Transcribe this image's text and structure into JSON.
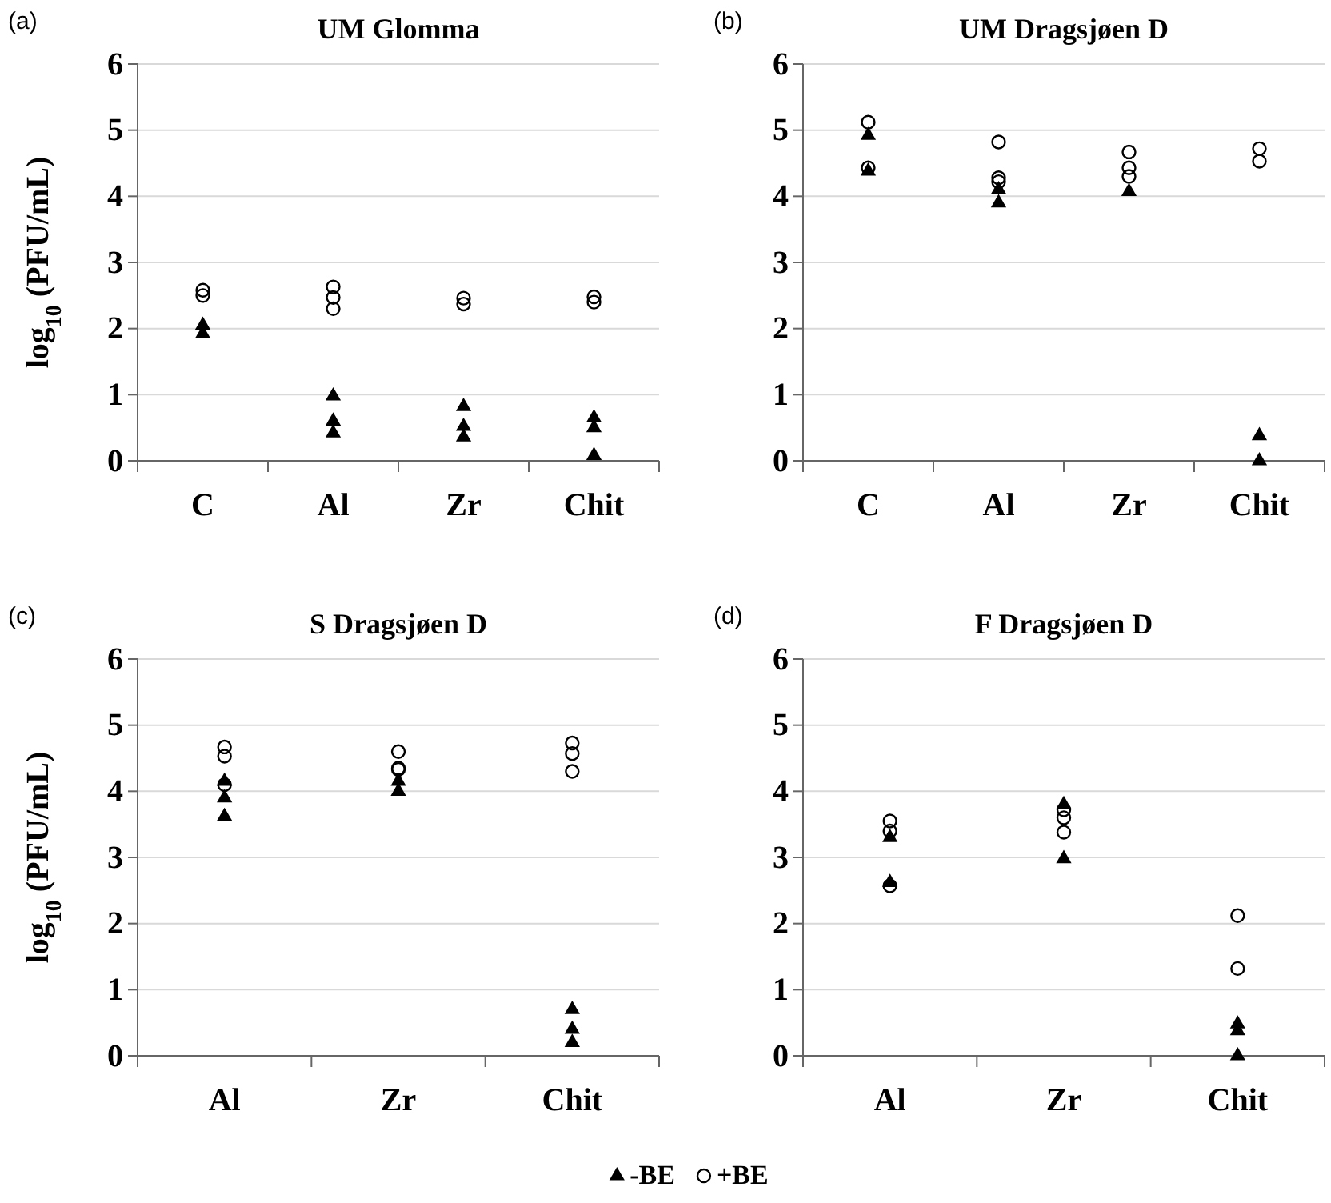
{
  "chart_data": [
    {
      "type": "scatter",
      "title": "UM Glomma",
      "ylabel": "log$_{10}$ (PFU/mL)",
      "annotations": [
        "(a)"
      ],
      "categories": [
        "C",
        "Al",
        "Zr",
        "Chit"
      ],
      "ylim": [
        0,
        6
      ],
      "yticks": [
        0,
        1,
        2,
        3,
        4,
        5,
        6
      ],
      "grid": "y",
      "legend": "bottom",
      "series": [
        {
          "name": "-BE",
          "color": "#000000",
          "marker": "triangle",
          "x": [
            "C",
            "C",
            "Al",
            "Al",
            "Al",
            "Zr",
            "Zr",
            "Zr",
            "Chit",
            "Chit",
            "Chit"
          ],
          "values": [
            2.05,
            1.92,
            0.98,
            0.6,
            0.42,
            0.82,
            0.52,
            0.36,
            0.65,
            0.5,
            0.08
          ]
        },
        {
          "name": "+BE",
          "color": "#000000",
          "marker": "circle",
          "x": [
            "C",
            "C",
            "Al",
            "Al",
            "Al",
            "Zr",
            "Zr",
            "Chit",
            "Chit"
          ],
          "values": [
            2.58,
            2.5,
            2.63,
            2.47,
            2.3,
            2.46,
            2.37,
            2.48,
            2.4
          ]
        }
      ]
    },
    {
      "type": "scatter",
      "title": "UM Dragsjøen D",
      "annotations": [
        "(b)"
      ],
      "categories": [
        "C",
        "Al",
        "Zr",
        "Chit"
      ],
      "ylim": [
        0,
        6
      ],
      "yticks": [
        0,
        1,
        2,
        3,
        4,
        5,
        6
      ],
      "grid": "y",
      "legend": "bottom",
      "series": [
        {
          "name": "-BE",
          "color": "#000000",
          "marker": "triangle",
          "x": [
            "C",
            "C",
            "Al",
            "Al",
            "Zr",
            "Chit",
            "Chit"
          ],
          "values": [
            4.92,
            4.38,
            4.1,
            3.9,
            4.07,
            0.38,
            0.0
          ]
        },
        {
          "name": "+BE",
          "color": "#000000",
          "marker": "circle",
          "x": [
            "C",
            "C",
            "Al",
            "Al",
            "Al",
            "Zr",
            "Zr",
            "Zr",
            "Chit",
            "Chit"
          ],
          "values": [
            5.12,
            4.43,
            4.82,
            4.28,
            4.22,
            4.67,
            4.43,
            4.3,
            4.72,
            4.53
          ]
        }
      ]
    },
    {
      "type": "scatter",
      "title": "S Dragsjøen D",
      "ylabel": "log$_{10}$ (PFU/mL)",
      "annotations": [
        "(c)"
      ],
      "categories": [
        "Al",
        "Zr",
        "Chit"
      ],
      "ylim": [
        0,
        6
      ],
      "yticks": [
        0,
        1,
        2,
        3,
        4,
        5,
        6
      ],
      "grid": "y",
      "legend": "bottom",
      "series": [
        {
          "name": "-BE",
          "color": "#000000",
          "marker": "triangle",
          "x": [
            "Al",
            "Al",
            "Al",
            "Zr",
            "Zr",
            "Chit",
            "Chit",
            "Chit"
          ],
          "values": [
            3.9,
            3.62,
            4.15,
            4.15,
            4.0,
            0.7,
            0.4,
            0.2
          ]
        },
        {
          "name": "+BE",
          "color": "#000000",
          "marker": "circle",
          "x": [
            "Al",
            "Al",
            "Al",
            "Zr",
            "Zr",
            "Zr",
            "Chit",
            "Chit",
            "Chit"
          ],
          "values": [
            4.67,
            4.53,
            4.1,
            4.6,
            4.35,
            4.33,
            4.73,
            4.57,
            4.3
          ]
        }
      ]
    },
    {
      "type": "scatter",
      "title": "F Dragsjøen D",
      "annotations": [
        "(d)"
      ],
      "categories": [
        "Al",
        "Zr",
        "Chit"
      ],
      "ylim": [
        0,
        6
      ],
      "yticks": [
        0,
        1,
        2,
        3,
        4,
        5,
        6
      ],
      "grid": "y",
      "legend": "bottom",
      "series": [
        {
          "name": "-BE",
          "color": "#000000",
          "marker": "triangle",
          "x": [
            "Al",
            "Al",
            "Zr",
            "Zr",
            "Chit",
            "Chit",
            "Chit"
          ],
          "values": [
            3.3,
            2.62,
            3.8,
            2.98,
            0.48,
            0.38,
            0.0
          ]
        },
        {
          "name": "+BE",
          "color": "#000000",
          "marker": "circle",
          "x": [
            "Al",
            "Al",
            "Al",
            "Zr",
            "Zr",
            "Zr",
            "Chit",
            "Chit"
          ],
          "values": [
            3.55,
            3.4,
            2.57,
            3.72,
            3.6,
            3.38,
            2.12,
            1.32
          ]
        }
      ]
    }
  ]
}
